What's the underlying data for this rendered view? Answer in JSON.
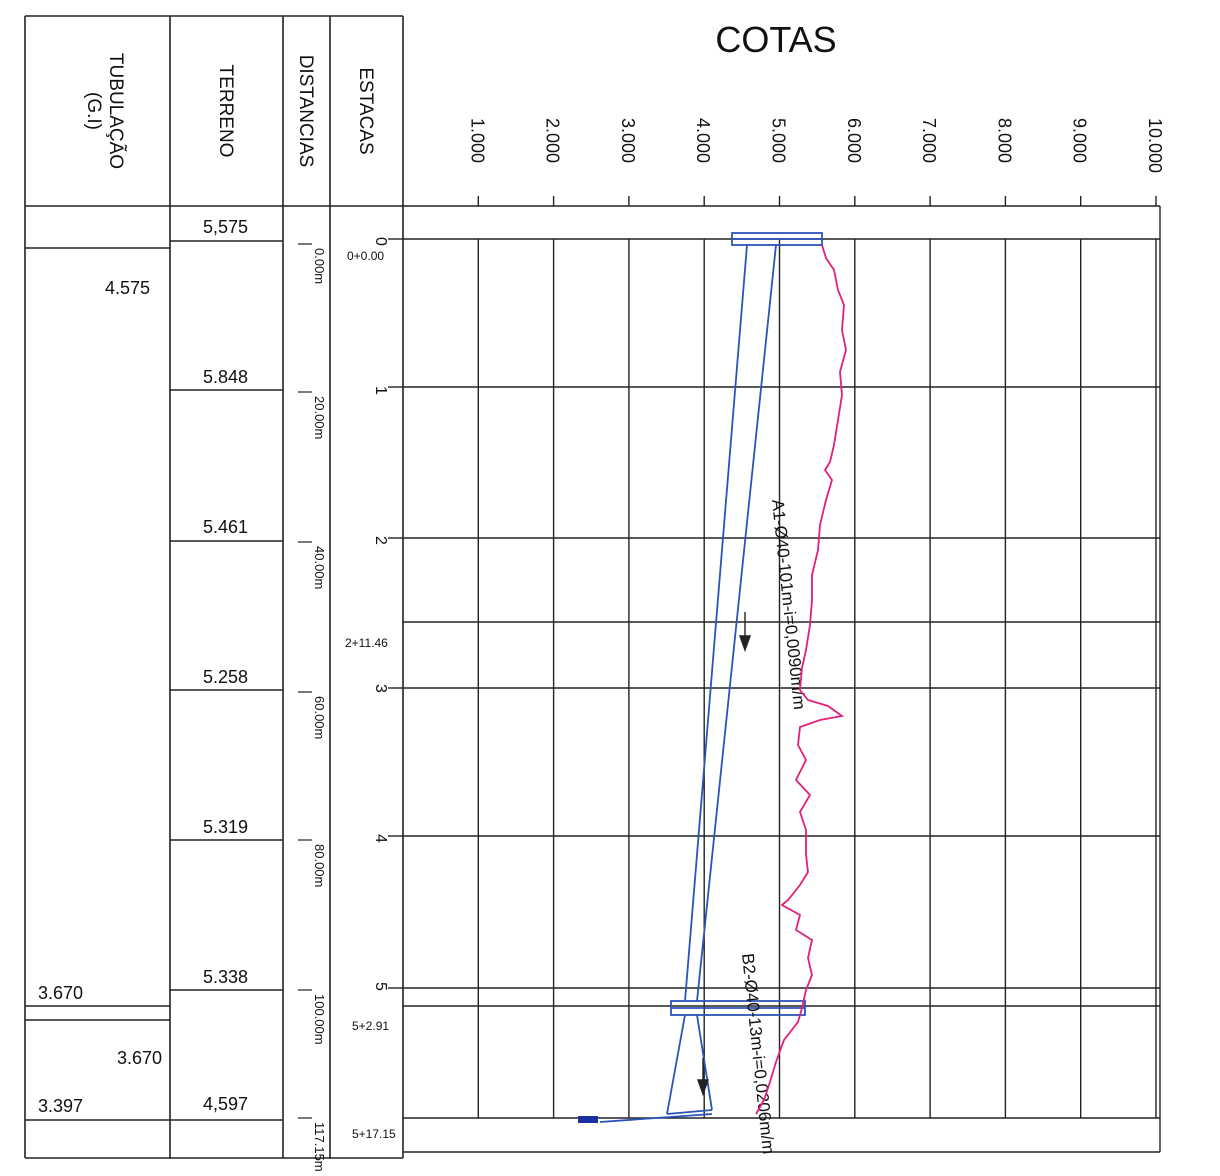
{
  "title": "COTAS",
  "headers": {
    "tubulacao_line1": "TUBULAÇÃO",
    "tubulacao_line2": "(G.I)",
    "terreno": "TERRENO",
    "distancias": "DISTANCIAS",
    "estacas": "ESTACAS"
  },
  "cota_ticks": [
    "1.000",
    "2.000",
    "3.000",
    "4.000",
    "5.000",
    "6.000",
    "7.000",
    "8.000",
    "9.000",
    "10.000"
  ],
  "terreno_values": [
    "5,575",
    "5.848",
    "5.461",
    "5.258",
    "5.319",
    "5.338",
    "4,597"
  ],
  "tubulacao_values": [
    "4.575",
    "3.670",
    "3.670",
    "3.397"
  ],
  "distancias": [
    "0.00m",
    "20.00m",
    "40.00m",
    "60.00m",
    "80.00m",
    "100.00m",
    "117.15m"
  ],
  "estacas_integer": [
    "0",
    "1",
    "2",
    "3",
    "4",
    "5"
  ],
  "estacas_special": [
    "0+0.00",
    "2+11.46",
    "5+2.91",
    "5+17.15"
  ],
  "pipe_labels": {
    "segment_a": "A1-Ø40-101m-i=0,0090m/m",
    "segment_b": "B2-Ø40-13m-i=0,0206m/m"
  },
  "colors": {
    "grid": "#222222",
    "pipe": "#2b54b8",
    "terrain": "#e0207a",
    "marker": "#1a2fa0"
  }
}
